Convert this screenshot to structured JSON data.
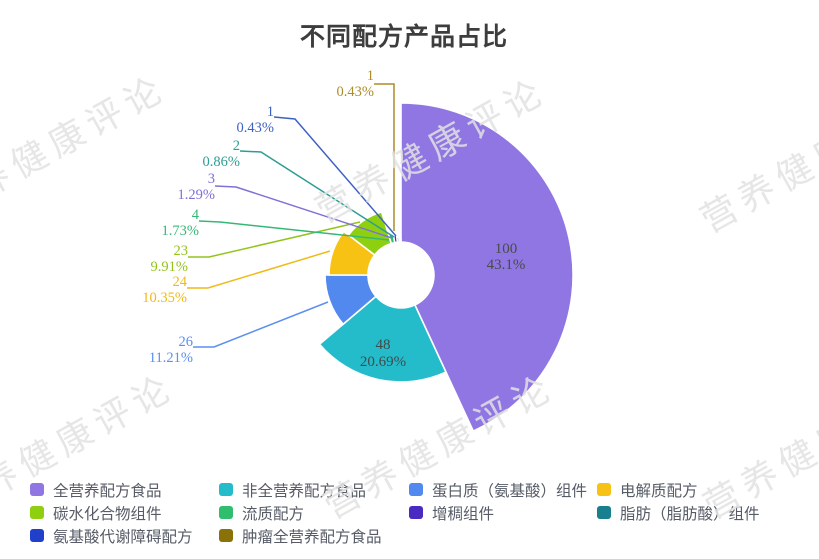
{
  "title": "不同配方产品占比",
  "watermark": {
    "text": "营养健康评论"
  },
  "chart_data": {
    "type": "pie",
    "variant": "nightingale-rose",
    "title": "不同配方产品占比",
    "donut": true,
    "legend_position": "bottom",
    "label_format": "value then percent",
    "slices": [
      {
        "name": "全营养配方食品",
        "value": 100,
        "pct": "43.1%",
        "color": "#8f76e3",
        "label_color": "#4a4a4a",
        "label_inside": true
      },
      {
        "name": "非全营养配方食品",
        "value": 48,
        "pct": "20.69%",
        "color": "#24bccb",
        "label_color": "#3f4b4b",
        "label_inside": true
      },
      {
        "name": "蛋白质（氨基酸）组件",
        "value": 26,
        "pct": "11.21%",
        "color": "#5289ee",
        "label_color": "#5b8ff0",
        "label_inside": false
      },
      {
        "name": "电解质配方",
        "value": 24,
        "pct": "10.35%",
        "color": "#f7c214",
        "label_color": "#f0ba18",
        "label_inside": false
      },
      {
        "name": "碳水化合物组件",
        "value": 23,
        "pct": "9.91%",
        "color": "#8ecf10",
        "label_color": "#93c41c",
        "label_inside": false
      },
      {
        "name": "流质配方",
        "value": 4,
        "pct": "1.73%",
        "color": "#30bd6e",
        "label_color": "#35b877",
        "label_inside": false
      },
      {
        "name": "增稠组件",
        "value": 3,
        "pct": "1.29%",
        "color": "#4a2ac0",
        "label_color": "#8170d6",
        "label_inside": false
      },
      {
        "name": "脂肪（脂肪酸）组件",
        "value": 2,
        "pct": "0.86%",
        "color": "#177f8d",
        "label_color": "#2e9d92",
        "label_inside": false
      },
      {
        "name": "氨基酸代谢障碍配方",
        "value": 1,
        "pct": "0.43%",
        "color": "#2040cc",
        "label_color": "#3e62c4",
        "label_inside": false
      },
      {
        "name": "肿瘤全营养配方食品",
        "value": 1,
        "pct": "0.43%",
        "color": "#8a7208",
        "label_color": "#ad8c2a",
        "label_inside": false
      }
    ]
  }
}
